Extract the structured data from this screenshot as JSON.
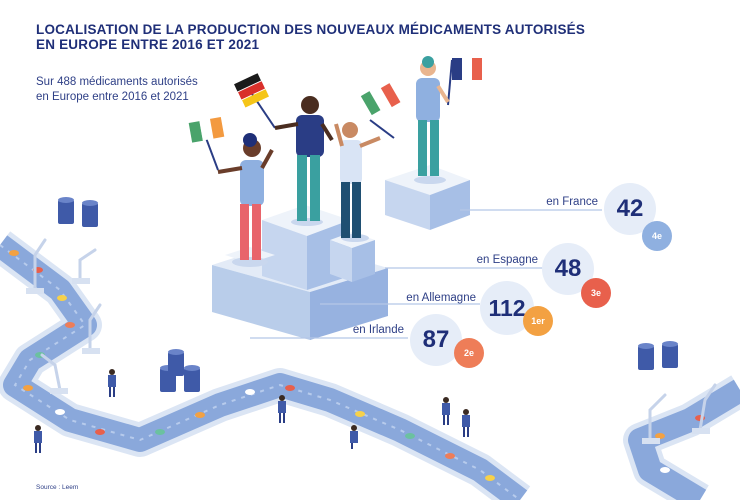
{
  "title_line1": "LOCALISATION DE LA PRODUCTION DES NOUVEAUX MÉDICAMENTS AUTORISÉS",
  "title_line2": "EN EUROPE ENTRE 2016 ET 2021",
  "subtitle_line1": "Sur 488 médicaments autorisés",
  "subtitle_line2": "en Europe entre 2016 et 2021",
  "countries": [
    {
      "label": "en France",
      "value": "42",
      "rank": "4e",
      "rank_color": "#8fb0e0"
    },
    {
      "label": "en Espagne",
      "value": "48",
      "rank": "3e",
      "rank_color": "#e8604c"
    },
    {
      "label": "en Allemagne",
      "value": "112",
      "rank": "1er",
      "rank_color": "#f3a142"
    },
    {
      "label": "en Irlande",
      "value": "87",
      "rank": "2e",
      "rank_color": "#ee7d58"
    }
  ],
  "source": "Source : Leem",
  "colors": {
    "navy": "#1f2f78",
    "podium_top": "#dfe8f5",
    "podium_side": "#a7bfe6",
    "belt": "#8aa8db"
  }
}
